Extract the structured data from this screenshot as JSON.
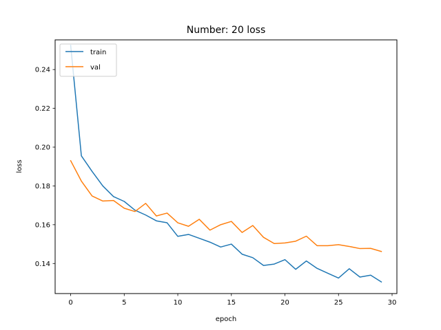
{
  "chart_data": {
    "type": "line",
    "title": "Number: 20 loss",
    "xlabel": "epoch",
    "ylabel": "loss",
    "xlim": [
      -1.45,
      30.45
    ],
    "ylim": [
      0.1245,
      0.2553
    ],
    "xticks": [
      0,
      5,
      10,
      15,
      20,
      25,
      30
    ],
    "yticks": [
      0.14,
      0.16,
      0.18,
      0.2,
      0.22,
      0.24
    ],
    "ytick_labels": [
      "0.14",
      "0.16",
      "0.18",
      "0.20",
      "0.22",
      "0.24"
    ],
    "grid": false,
    "legend_position": "upper left",
    "x": [
      0,
      1,
      2,
      3,
      4,
      5,
      6,
      7,
      8,
      9,
      10,
      11,
      12,
      13,
      14,
      15,
      16,
      17,
      18,
      19,
      20,
      21,
      22,
      23,
      24,
      25,
      26,
      27,
      28,
      29
    ],
    "series": [
      {
        "name": "train",
        "color": "#1f77b4",
        "values": [
          0.2525,
          0.1955,
          0.1875,
          0.18,
          0.1745,
          0.172,
          0.1675,
          0.165,
          0.162,
          0.161,
          0.154,
          0.155,
          0.153,
          0.151,
          0.1485,
          0.15,
          0.1448,
          0.143,
          0.139,
          0.1397,
          0.142,
          0.137,
          0.1413,
          0.1375,
          0.135,
          0.1325,
          0.1373,
          0.133,
          0.134,
          0.1305
        ]
      },
      {
        "name": "val",
        "color": "#ff7f0e",
        "values": [
          0.193,
          0.1825,
          0.1748,
          0.1722,
          0.1725,
          0.1685,
          0.1668,
          0.171,
          0.1645,
          0.166,
          0.161,
          0.1592,
          0.1628,
          0.1572,
          0.16,
          0.1617,
          0.156,
          0.1596,
          0.1535,
          0.1503,
          0.1506,
          0.1515,
          0.1541,
          0.1492,
          0.1492,
          0.1497,
          0.1488,
          0.1477,
          0.1478,
          0.1462
        ]
      }
    ]
  }
}
